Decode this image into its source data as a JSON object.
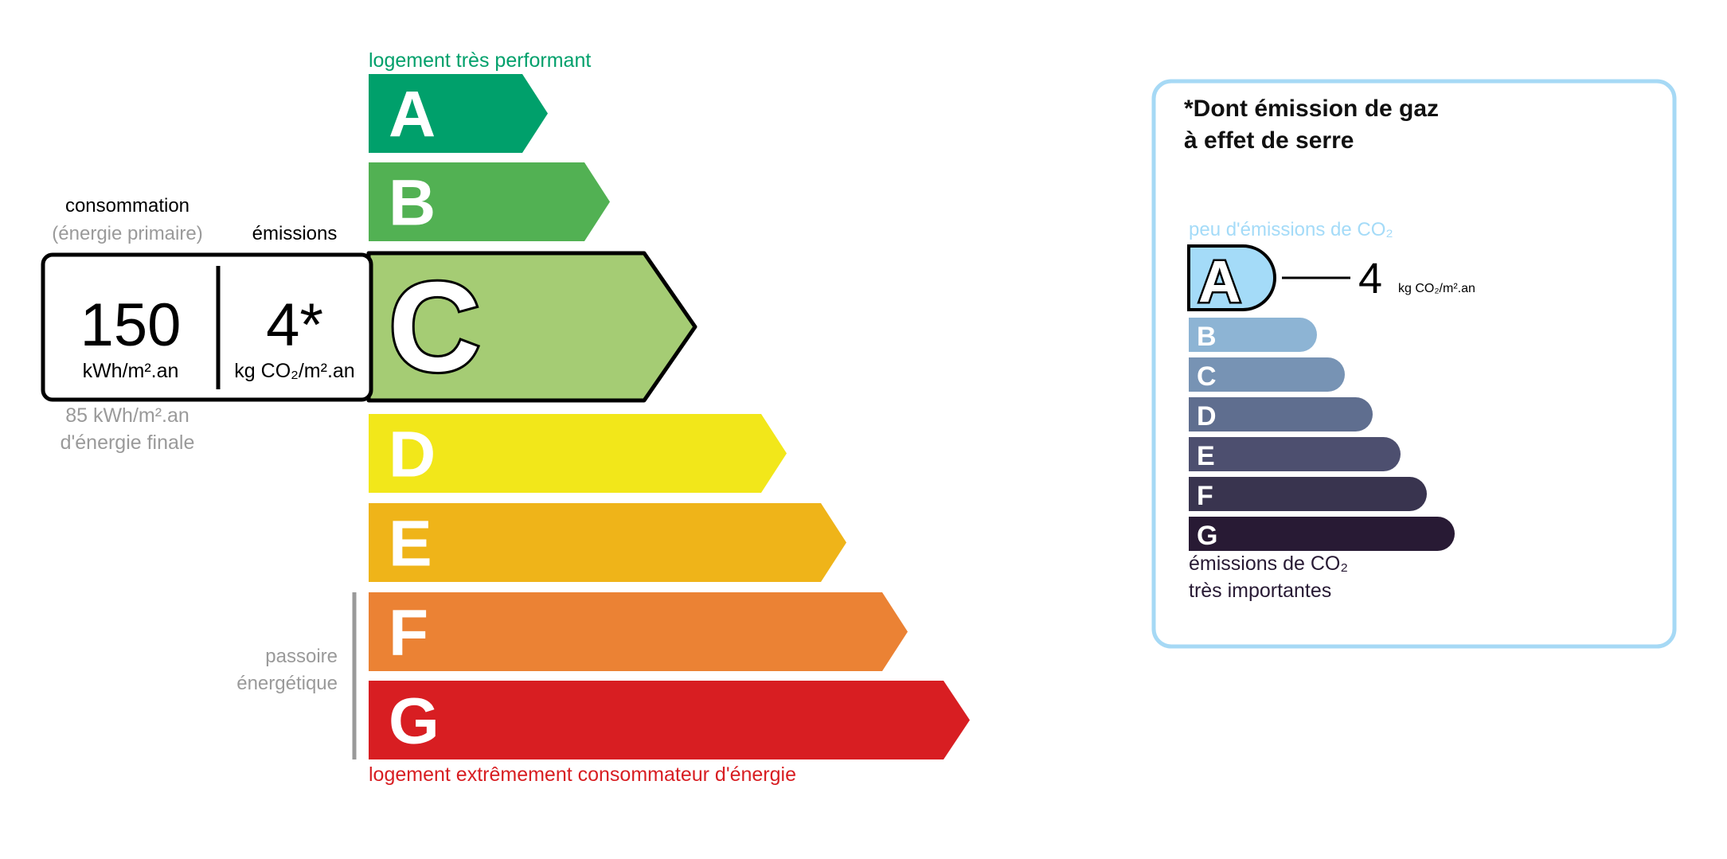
{
  "energy": {
    "top_label": "logement très performant",
    "bottom_label": "logement extrêmement consommateur d'énergie",
    "classes": [
      {
        "letter": "A",
        "color": "#00a06b"
      },
      {
        "letter": "B",
        "color": "#52b153"
      },
      {
        "letter": "C",
        "color": "#a5cc74"
      },
      {
        "letter": "D",
        "color": "#f2e71a"
      },
      {
        "letter": "E",
        "color": "#efb419"
      },
      {
        "letter": "F",
        "color": "#eb8234"
      },
      {
        "letter": "G",
        "color": "#d81e22"
      }
    ],
    "current_class": "C",
    "consumption_label": "consommation",
    "consumption_sublabel": "(énergie primaire)",
    "emissions_label": "émissions",
    "consumption_value": "150",
    "consumption_unit": "kWh/m².an",
    "emissions_value": "4*",
    "emissions_unit": "kg CO₂/m².an",
    "final_energy_value": "85 kWh/m².an",
    "final_energy_label": "d'énergie finale",
    "passoire_line1": "passoire",
    "passoire_line2": "énergétique",
    "top_color": "#00a06b",
    "bottom_color": "#d81e22"
  },
  "ghg": {
    "title_line1": "*Dont émission de gaz",
    "title_line2": "à effet de serre",
    "top_label": "peu d'émissions de CO₂",
    "bottom_label_line1": "émissions de CO₂",
    "bottom_label_line2": "très importantes",
    "current_class": "A",
    "value": "4",
    "unit": "kg CO₂/m².an",
    "border_color": "#a6d9f5",
    "classes": [
      {
        "letter": "A",
        "color": "#a4dbf8"
      },
      {
        "letter": "B",
        "color": "#8db4d4"
      },
      {
        "letter": "C",
        "color": "#7793b4"
      },
      {
        "letter": "D",
        "color": "#5f6e8f"
      },
      {
        "letter": "E",
        "color": "#4d4f6f"
      },
      {
        "letter": "F",
        "color": "#39344f"
      },
      {
        "letter": "G",
        "color": "#281a34"
      }
    ]
  }
}
